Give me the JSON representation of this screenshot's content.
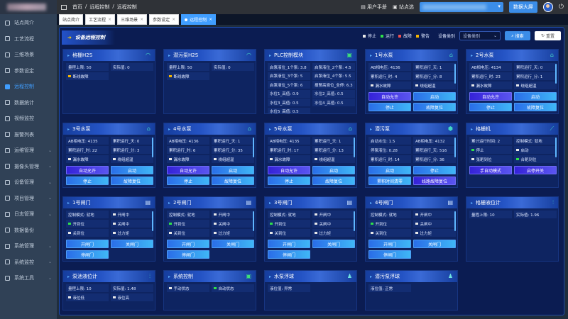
{
  "colors": {
    "stop": "#e8e8e8",
    "run": "#2ee04a",
    "fault": "#f05050",
    "warn": "#f5b400",
    "accent": "#409eff",
    "purple": "#4a3be6"
  },
  "sidebar": {
    "items": [
      {
        "label": "站点简介",
        "icon": "dashboard-icon"
      },
      {
        "label": "工艺流程",
        "icon": "flow-icon"
      },
      {
        "label": "三维场景",
        "icon": "cube-icon"
      },
      {
        "label": "参数设定",
        "icon": "edit-icon"
      },
      {
        "label": "远程控制",
        "icon": "remote-icon",
        "active": true
      },
      {
        "label": "数据统计",
        "icon": "chart-icon"
      },
      {
        "label": "视频监控",
        "icon": "video-icon"
      },
      {
        "label": "报警列表",
        "icon": "alarm-icon"
      },
      {
        "label": "运维管理",
        "icon": "maintenance-icon",
        "expandable": true
      },
      {
        "label": "摄像头管理",
        "icon": "camera-icon",
        "expandable": true
      },
      {
        "label": "设备管理",
        "icon": "device-icon",
        "expandable": true
      },
      {
        "label": "项目管理",
        "icon": "project-icon",
        "expandable": true
      },
      {
        "label": "日志管理",
        "icon": "log-icon",
        "expandable": true
      },
      {
        "label": "数据备份",
        "icon": "backup-icon"
      },
      {
        "label": "系统管理",
        "icon": "settings-icon",
        "expandable": true
      },
      {
        "label": "系统监控",
        "icon": "monitor-icon",
        "expandable": true
      },
      {
        "label": "系统工具",
        "icon": "tools-icon",
        "expandable": true
      }
    ]
  },
  "header": {
    "breadcrumb": [
      "首页",
      "/",
      "远程控制",
      "/",
      "远程控制"
    ],
    "manual": "用户手册",
    "site_label": "站点选",
    "screen_button": "数据大屏"
  },
  "tabs": [
    {
      "label": "站点简介",
      "closable": false
    },
    {
      "label": "工艺流程",
      "closable": true
    },
    {
      "label": "三维场景",
      "closable": true
    },
    {
      "label": "参数设定",
      "closable": true
    },
    {
      "label": "远程控制",
      "closable": true,
      "active": true
    }
  ],
  "panel": {
    "title": "设备远程控制",
    "legend": [
      {
        "label": "停止",
        "color": "stop"
      },
      {
        "label": "运行",
        "color": "run"
      },
      {
        "label": "故障",
        "color": "fault"
      },
      {
        "label": "警告",
        "color": "warn"
      }
    ],
    "filter_label": "设备类别",
    "filter_placeholder": "设备类别",
    "search": "搜索",
    "reset": "重置"
  },
  "cards": [
    {
      "title": "格栅H2S",
      "icon": "gauge-icon",
      "fields": [
        {
          "t": "量程上限: 50"
        },
        {
          "t": "实际值: 0"
        },
        {
          "t": "断线故障",
          "d": "warn"
        }
      ],
      "buttons": []
    },
    {
      "title": "潜污泵H2S",
      "icon": "gauge-icon",
      "fields": [
        {
          "t": "量程上限: 50"
        },
        {
          "t": "实际值: 0"
        },
        {
          "t": "断线故障",
          "d": "warn"
        }
      ],
      "buttons": []
    },
    {
      "title": "PLC控制模块",
      "icon": "plc-icon",
      "plc": true,
      "fields": [
        {
          "t": "启泵液位_1个泵: 3.8"
        },
        {
          "t": "启泵液位_2个泵: 4.5"
        },
        {
          "t": "启泵液位_3个泵: 5"
        },
        {
          "t": "启泵液位_4个泵: 5.5"
        },
        {
          "t": "启泵液位_5个泵: 6"
        },
        {
          "t": "报警高液位_全停: 6.3"
        },
        {
          "t": "水位1_高值: 0.9"
        },
        {
          "t": "水位2_高值: 0.5"
        },
        {
          "t": "水位3_高值: 0.5"
        },
        {
          "t": "水位4_高值: 0.5"
        },
        {
          "t": "水位5_高值: 0.5"
        }
      ],
      "buttons": []
    },
    {
      "title": "1号水泵",
      "icon": "pump-icon",
      "scroll": true,
      "fields": [
        {
          "t": "AB相电压: 4136"
        },
        {
          "t": "累积运行_天: 1"
        },
        {
          "t": "累积运行_时: 4"
        },
        {
          "t": "累积运行_分: 8"
        },
        {
          "t": "漏水故障",
          "d": "stop"
        },
        {
          "t": "绕组超温",
          "d": "stop"
        }
      ],
      "buttons": [
        {
          "t": "自动允许",
          "p": true
        },
        {
          "t": "启动"
        },
        {
          "t": "停止"
        },
        {
          "t": "故障复位"
        }
      ]
    },
    {
      "title": "2号水泵",
      "icon": "pump-icon",
      "scroll": true,
      "fields": [
        {
          "t": "AB相电压: 4134"
        },
        {
          "t": "累积运行_天: 0"
        },
        {
          "t": "累积运行_时: 23"
        },
        {
          "t": "累积运行_分: 1"
        },
        {
          "t": "漏水故障",
          "d": "stop"
        },
        {
          "t": "绕组超温",
          "d": "stop"
        }
      ],
      "buttons": [
        {
          "t": "自动允许",
          "p": true
        },
        {
          "t": "启动"
        },
        {
          "t": "停止"
        },
        {
          "t": "故障复位"
        }
      ]
    },
    {
      "title": "3号水泵",
      "icon": "pump-icon",
      "scroll": true,
      "fields": [
        {
          "t": "AB相电压: 4135"
        },
        {
          "t": "累积运行_天: 0"
        },
        {
          "t": "累积运行_时: 22"
        },
        {
          "t": "累积运行_分: 3"
        },
        {
          "t": "漏水故障",
          "d": "stop"
        },
        {
          "t": "绕组超温",
          "d": "stop"
        }
      ],
      "buttons": [
        {
          "t": "自动允许",
          "p": true
        },
        {
          "t": "启动"
        },
        {
          "t": "停止"
        },
        {
          "t": "故障复位"
        }
      ]
    },
    {
      "title": "4号水泵",
      "icon": "pump-icon",
      "scroll": true,
      "fields": [
        {
          "t": "AB相电压: 4136"
        },
        {
          "t": "累积运行_天: 1"
        },
        {
          "t": "累积运行_时: 6"
        },
        {
          "t": "累积运行_分: 35"
        },
        {
          "t": "漏水故障",
          "d": "stop"
        },
        {
          "t": "绕组超温",
          "d": "stop"
        }
      ],
      "buttons": [
        {
          "t": "自动允许",
          "p": true
        },
        {
          "t": "启动"
        },
        {
          "t": "停止"
        },
        {
          "t": "故障复位"
        }
      ]
    },
    {
      "title": "5号水泵",
      "icon": "pump-icon",
      "scroll": true,
      "fields": [
        {
          "t": "AB相电压: 4135"
        },
        {
          "t": "累积运行_天: 1"
        },
        {
          "t": "累积运行_时: 17"
        },
        {
          "t": "累积运行_分: 13"
        },
        {
          "t": "漏水故障",
          "d": "stop"
        },
        {
          "t": "绕组超温",
          "d": "stop"
        }
      ],
      "buttons": [
        {
          "t": "自动允许",
          "p": true
        },
        {
          "t": "启动"
        },
        {
          "t": "停止"
        },
        {
          "t": "故障复位"
        }
      ]
    },
    {
      "title": "潜污泵",
      "icon": "sewage-pump-icon",
      "scroll": true,
      "fields": [
        {
          "t": "启动水位: 1.5"
        },
        {
          "t": "AB相电压: 4132"
        },
        {
          "t": "停泵液位: 0.28"
        },
        {
          "t": "累积运行_天: 516"
        },
        {
          "t": "累积运行_时: 14"
        },
        {
          "t": "累积运行_分: 36"
        }
      ],
      "buttons": [
        {
          "t": "启动"
        },
        {
          "t": "停止"
        },
        {
          "t": "累积时间清零"
        },
        {
          "t": "线路故障复位",
          "p": true
        }
      ]
    },
    {
      "title": "格栅机",
      "icon": "grille-icon",
      "scroll": true,
      "fields": [
        {
          "t": "累计运行时间: 2"
        },
        {
          "t": "控制模式: 就地"
        },
        {
          "t": "停止",
          "d": "run"
        },
        {
          "t": "启动",
          "d": "stop"
        },
        {
          "t": "张耙到位",
          "d": "stop"
        },
        {
          "t": "合耙到位",
          "d": "run"
        }
      ],
      "buttons": [
        {
          "t": "手自动模式",
          "p": true
        },
        {
          "t": "启停开关",
          "p": true
        }
      ]
    },
    {
      "title": "1号闸门",
      "icon": "gate-icon",
      "scroll": true,
      "fields": [
        {
          "t": "控制模式: 就地"
        },
        {
          "t": "开闸中",
          "d": "stop"
        },
        {
          "t": "开到位",
          "d": "run"
        },
        {
          "t": "关闸中",
          "d": "stop"
        },
        {
          "t": "关到位",
          "d": "stop"
        },
        {
          "t": "过力矩",
          "d": "stop"
        }
      ],
      "buttons": [
        {
          "t": "开闸门"
        },
        {
          "t": "关闸门"
        },
        {
          "t": "停闸门"
        }
      ]
    },
    {
      "title": "2号闸门",
      "icon": "gate-icon",
      "scroll": true,
      "fields": [
        {
          "t": "控制模式: 就地"
        },
        {
          "t": "开闸中",
          "d": "stop"
        },
        {
          "t": "开到位",
          "d": "run"
        },
        {
          "t": "关闸中",
          "d": "stop"
        },
        {
          "t": "关到位",
          "d": "stop"
        },
        {
          "t": "过力矩",
          "d": "stop"
        }
      ],
      "buttons": [
        {
          "t": "开闸门"
        },
        {
          "t": "关闸门"
        },
        {
          "t": "停闸门"
        }
      ]
    },
    {
      "title": "3号闸门",
      "icon": "gate-icon",
      "scroll": true,
      "fields": [
        {
          "t": "控制模式: 就地"
        },
        {
          "t": "开闸中",
          "d": "stop"
        },
        {
          "t": "开到位",
          "d": "run"
        },
        {
          "t": "关闸中",
          "d": "stop"
        },
        {
          "t": "关到位",
          "d": "stop"
        },
        {
          "t": "过力矩",
          "d": "stop"
        }
      ],
      "buttons": [
        {
          "t": "开闸门"
        },
        {
          "t": "关闸门"
        },
        {
          "t": "停闸门"
        }
      ]
    },
    {
      "title": "4号闸门",
      "icon": "gate-icon",
      "scroll": true,
      "fields": [
        {
          "t": "控制模式: 就地"
        },
        {
          "t": "开闸中",
          "d": "stop"
        },
        {
          "t": "开到位",
          "d": "run"
        },
        {
          "t": "关闸中",
          "d": "stop"
        },
        {
          "t": "关到位",
          "d": "stop"
        },
        {
          "t": "过力矩",
          "d": "stop"
        }
      ],
      "buttons": [
        {
          "t": "开闸门"
        },
        {
          "t": "关闸门"
        },
        {
          "t": "停闸门"
        }
      ]
    },
    {
      "title": "格栅液位计",
      "icon": "level-meter-icon",
      "fields": [
        {
          "t": "量程上限: 10"
        },
        {
          "t": "实际值: 1.96"
        }
      ],
      "buttons": []
    },
    {
      "title": "泵池液位计",
      "icon": "level-meter-icon",
      "fields": [
        {
          "t": "量程上限: 10"
        },
        {
          "t": "实际值: 1.48"
        },
        {
          "t": "液位低",
          "d": "stop"
        },
        {
          "t": "液位高",
          "d": "stop"
        }
      ],
      "buttons": []
    },
    {
      "title": "系统控制",
      "icon": "plc-icon",
      "fields": [
        {
          "t": "手动状态",
          "d": "stop"
        },
        {
          "t": "自动状态",
          "d": "run"
        }
      ],
      "buttons": []
    },
    {
      "title": "水泵浮球",
      "icon": "float-icon",
      "fields": [
        {
          "t": "液位值: 异常"
        }
      ],
      "buttons": []
    },
    {
      "title": "潜污泵浮球",
      "icon": "float-icon",
      "fields": [
        {
          "t": "液位值: 正常"
        }
      ],
      "buttons": []
    }
  ]
}
